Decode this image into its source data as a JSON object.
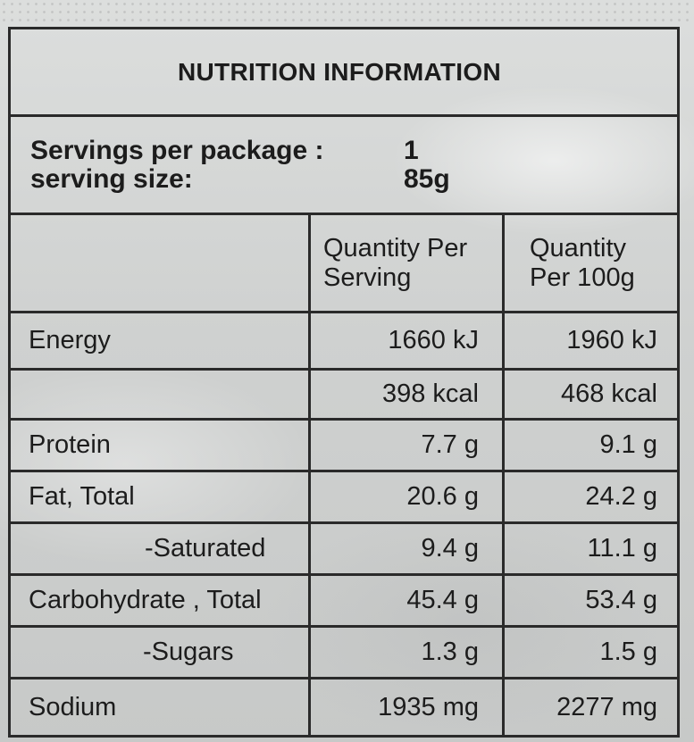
{
  "label": {
    "title": "NUTRITION INFORMATION",
    "servings_per_package_label": "Servings per package :",
    "servings_per_package_value": "1",
    "serving_size_label": "serving size:",
    "serving_size_value": "85g"
  },
  "table": {
    "columns": [
      "",
      "Quantity Per Serving",
      "Quantity Per 100g"
    ],
    "header_col2_line1": "Quantity Per",
    "header_col2_line2": "Serving",
    "header_col3_line1": "Quantity",
    "header_col3_line2": "Per 100g",
    "rows": [
      {
        "nutrient": "Energy",
        "per_serving": "1660 kJ",
        "per_100g": "1960 kJ"
      },
      {
        "nutrient": "",
        "per_serving": "398 kcal",
        "per_100g": "468 kcal"
      },
      {
        "nutrient": "Protein",
        "per_serving": "7.7 g",
        "per_100g": "9.1 g"
      },
      {
        "nutrient": "Fat, Total",
        "per_serving": "20.6 g",
        "per_100g": "24.2 g"
      },
      {
        "nutrient": "-Saturated",
        "per_serving": "9.4 g",
        "per_100g": "11.1 g"
      },
      {
        "nutrient": "Carbohydrate , Total",
        "per_serving": "45.4 g",
        "per_100g": "53.4 g"
      },
      {
        "nutrient": "-Sugars",
        "per_serving": "1.3 g",
        "per_100g": "1.5 g"
      },
      {
        "nutrient": "Sodium",
        "per_serving": "1935 mg",
        "per_100g": "2277 mg"
      }
    ]
  }
}
